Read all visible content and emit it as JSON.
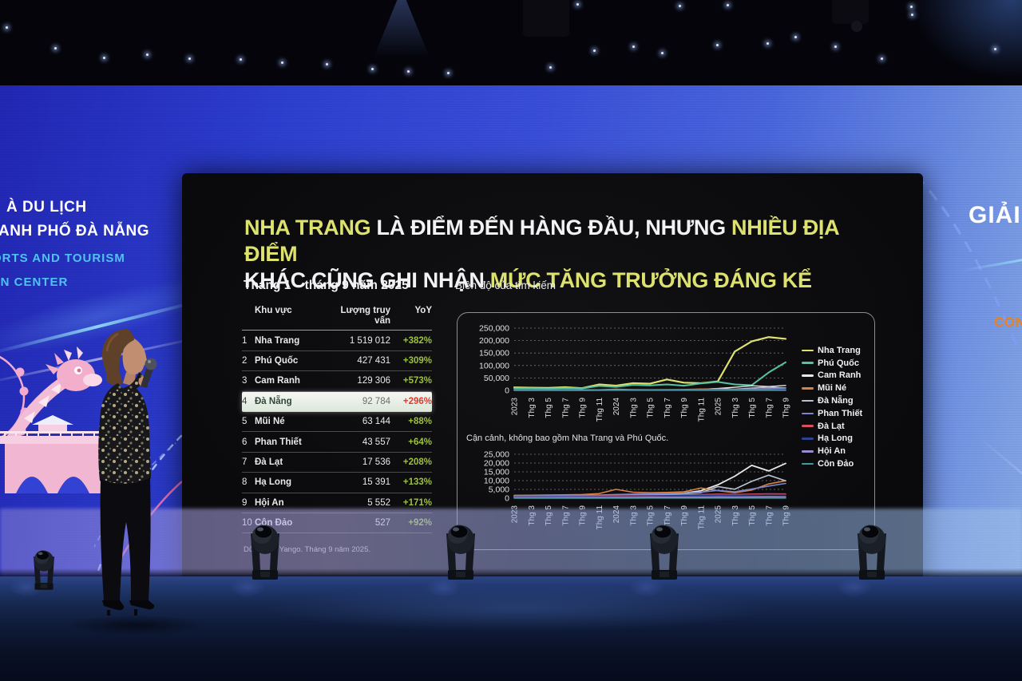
{
  "colors": {
    "accent_yellow": "#dde26e",
    "title_white": "#f2f2f2",
    "positive_green": "#9dc23c",
    "negative_red": "#e0392e",
    "led_cyan": "#4fc3f0",
    "led_orange": "#e8821e"
  },
  "slide": {
    "title_lines": [
      [
        {
          "text": "NHA TRANG ",
          "color": "#dde26e"
        },
        {
          "text": "LÀ ĐIỂM ĐẾN HÀNG ĐẦU, NHƯNG ",
          "color": "#f2f2f2"
        },
        {
          "text": "NHIỀU ĐỊA ĐIỂM",
          "color": "#dde26e"
        }
      ],
      [
        {
          "text": "KHÁC CŨNG GHI NHẬN ",
          "color": "#f2f2f2"
        },
        {
          "text": "MỨC TĂNG TRƯỞNG ĐÁNG KỂ",
          "color": "#dde26e"
        }
      ]
    ],
    "period_label": "Tháng 1 – tháng 9 năm 2025",
    "source_note": "Dữ liệu từ Yango. Tháng 9 năm 2025."
  },
  "table": {
    "headers": {
      "region": "Khu vực",
      "volume": "Lượng truy vấn",
      "yoy": "YoY"
    },
    "rows": [
      {
        "rank": "1",
        "name": "Nha Trang",
        "value": "1 519 012",
        "yoy": "+382%",
        "highlight": false
      },
      {
        "rank": "2",
        "name": "Phú Quốc",
        "value": "427 431",
        "yoy": "+309%",
        "highlight": false
      },
      {
        "rank": "3",
        "name": "Cam Ranh",
        "value": "129 306",
        "yoy": "+573%",
        "highlight": false
      },
      {
        "rank": "4",
        "name": "Đà Nẵng",
        "value": "92 784",
        "yoy": "+296%",
        "highlight": true
      },
      {
        "rank": "5",
        "name": "Mũi Né",
        "value": "63 144",
        "yoy": "+88%",
        "highlight": false
      },
      {
        "rank": "6",
        "name": "Phan Thiết",
        "value": "43 557",
        "yoy": "+64%",
        "highlight": false
      },
      {
        "rank": "7",
        "name": "Đà Lạt",
        "value": "17 536",
        "yoy": "+208%",
        "highlight": false
      },
      {
        "rank": "8",
        "name": "Hạ Long",
        "value": "15 391",
        "yoy": "+133%",
        "highlight": false
      },
      {
        "rank": "9",
        "name": "Hội An",
        "value": "5 552",
        "yoy": "+171%",
        "highlight": false
      },
      {
        "rank": "10",
        "name": "Côn Đảo",
        "value": "527",
        "yoy": "+92%",
        "highlight": false
      }
    ]
  },
  "chart_data": [
    {
      "type": "line",
      "title": "Biên độ của tìm kiếm",
      "xlabel": "",
      "ylabel": "",
      "ylim": [
        0,
        250000
      ],
      "y_ticks": [
        "250,000",
        "200,000",
        "150,000",
        "100,000",
        "50,000",
        "0"
      ],
      "grid": true,
      "legend_position": "right",
      "x_ticks": [
        "2023",
        "Thg 3",
        "Thg 5",
        "Thg 7",
        "Thg 9",
        "Thg 11",
        "2024",
        "Thg 3",
        "Thg 5",
        "Thg 7",
        "Thg 9",
        "Thg 11",
        "2025",
        "Thg 3",
        "Thg 5",
        "Thg 7",
        "Thg 9"
      ],
      "series": [
        {
          "name": "Nha Trang",
          "color": "#dde26e",
          "width": 2.2,
          "values": [
            12000,
            11000,
            10000,
            13000,
            9000,
            24000,
            19000,
            29000,
            27000,
            44000,
            31000,
            29000,
            36000,
            156000,
            197000,
            214000,
            207000
          ]
        },
        {
          "name": "Phú Quốc",
          "color": "#55c2a2",
          "width": 2.0,
          "values": [
            8000,
            8000,
            7000,
            9000,
            8000,
            18000,
            14000,
            22000,
            20000,
            24000,
            19000,
            28000,
            34000,
            24000,
            21000,
            72000,
            113000
          ]
        },
        {
          "name": "Cam Ranh",
          "color": "#e8e8e8",
          "width": 1.4,
          "values": [
            900,
            1000,
            1100,
            1200,
            1300,
            1600,
            1900,
            2100,
            2300,
            2600,
            2900,
            4200,
            7600,
            12500,
            18700,
            15500,
            19800
          ]
        },
        {
          "name": "Mũi Né",
          "color": "#d9823f",
          "width": 1.4,
          "values": [
            1600,
            1700,
            1800,
            1900,
            2100,
            2600,
            5000,
            3400,
            3100,
            3300,
            3600,
            5800,
            4300,
            3100,
            4600,
            8100,
            9900
          ]
        },
        {
          "name": "Đà Nẵng",
          "color": "#b9c2cc",
          "width": 1.4,
          "values": [
            700,
            800,
            900,
            1000,
            1100,
            1300,
            1600,
            1800,
            2000,
            2200,
            2500,
            3100,
            6600,
            5100,
            9600,
            13100,
            9900
          ]
        },
        {
          "name": "Phan Thiết",
          "color": "#7b85cf",
          "width": 1.4,
          "values": [
            1200,
            1300,
            1400,
            1500,
            1600,
            1800,
            2100,
            2300,
            2500,
            2700,
            2900,
            3400,
            4400,
            3600,
            5200,
            6900,
            8400
          ]
        },
        {
          "name": "Đà Lạt",
          "color": "#d94f5c",
          "width": 1.4,
          "values": [
            900,
            950,
            1000,
            1050,
            1100,
            1200,
            1400,
            1500,
            1600,
            1700,
            1800,
            2000,
            2300,
            2100,
            2300,
            2500,
            2400
          ]
        },
        {
          "name": "Hạ Long",
          "color": "#2e4390",
          "width": 1.4,
          "values": [
            700,
            750,
            800,
            850,
            900,
            1000,
            1100,
            1200,
            1300,
            1400,
            1500,
            1600,
            1800,
            1700,
            1900,
            2100,
            2000
          ]
        },
        {
          "name": "Hội An",
          "color": "#9d8bd0",
          "width": 1.4,
          "values": [
            300,
            320,
            340,
            360,
            380,
            420,
            470,
            500,
            530,
            560,
            600,
            650,
            750,
            700,
            800,
            900,
            850
          ]
        },
        {
          "name": "Côn Đảo",
          "color": "#3f9d9d",
          "width": 1.4,
          "values": [
            30,
            32,
            34,
            36,
            38,
            42,
            47,
            50,
            53,
            56,
            60,
            65,
            75,
            70,
            80,
            90,
            85
          ]
        }
      ]
    },
    {
      "type": "line",
      "title": "Cận cảnh, không bao gồm Nha Trang và Phú Quốc.",
      "xlabel": "",
      "ylabel": "",
      "ylim": [
        0,
        25000
      ],
      "y_ticks": [
        "25,000",
        "20,000",
        "15,000",
        "10,000",
        "5,000",
        "0"
      ],
      "grid": true,
      "x_ticks": [
        "2023",
        "Thg 3",
        "Thg 5",
        "Thg 7",
        "Thg 9",
        "Thg 11",
        "2024",
        "Thg 3",
        "Thg 5",
        "Thg 7",
        "Thg 9",
        "Thg 11",
        "2025",
        "Thg 3",
        "Thg 5",
        "Thg 7",
        "Thg 9"
      ],
      "series": [
        {
          "name": "Cam Ranh",
          "color": "#e8e8e8",
          "width": 1.8,
          "values": [
            900,
            1000,
            1100,
            1200,
            1300,
            1600,
            1900,
            2100,
            2300,
            2600,
            2900,
            4200,
            7600,
            12500,
            18700,
            15500,
            19800
          ]
        },
        {
          "name": "Mũi Né",
          "color": "#d9823f",
          "width": 1.6,
          "values": [
            1600,
            1700,
            1800,
            1900,
            2100,
            2600,
            5000,
            3400,
            3100,
            3300,
            3600,
            5800,
            4300,
            3100,
            4600,
            8100,
            9900
          ]
        },
        {
          "name": "Đà Nẵng",
          "color": "#b9c2cc",
          "width": 1.6,
          "values": [
            700,
            800,
            900,
            1000,
            1100,
            1300,
            1600,
            1800,
            2000,
            2200,
            2500,
            3100,
            6600,
            5100,
            9600,
            13100,
            9900
          ]
        },
        {
          "name": "Phan Thiết",
          "color": "#7b85cf",
          "width": 1.6,
          "values": [
            1200,
            1300,
            1400,
            1500,
            1600,
            1800,
            2100,
            2300,
            2500,
            2700,
            2900,
            3400,
            4400,
            3600,
            5200,
            6900,
            8400
          ]
        },
        {
          "name": "Đà Lạt",
          "color": "#d94f5c",
          "width": 1.6,
          "values": [
            900,
            950,
            1000,
            1050,
            1100,
            1200,
            1400,
            1500,
            1600,
            1700,
            1800,
            2000,
            2300,
            2100,
            2300,
            2500,
            2400
          ]
        },
        {
          "name": "Hạ Long",
          "color": "#2e4390",
          "width": 1.6,
          "values": [
            700,
            750,
            800,
            850,
            900,
            1000,
            1100,
            1200,
            1300,
            1400,
            1500,
            1600,
            1800,
            1700,
            1900,
            2100,
            2000
          ]
        },
        {
          "name": "Hội An",
          "color": "#9d8bd0",
          "width": 1.6,
          "values": [
            300,
            320,
            340,
            360,
            380,
            420,
            470,
            500,
            530,
            560,
            600,
            650,
            750,
            700,
            800,
            900,
            850
          ]
        },
        {
          "name": "Côn Đảo",
          "color": "#3f9d9d",
          "width": 1.6,
          "values": [
            30,
            32,
            34,
            36,
            38,
            42,
            47,
            50,
            53,
            56,
            60,
            65,
            75,
            70,
            80,
            90,
            85
          ]
        }
      ]
    }
  ],
  "led_left": {
    "line1": "À DU LỊCH",
    "line2": "ANH PHỐ ĐÀ NẴNG",
    "line3": "ORTS AND TOURISM",
    "line4": "ON CENTER"
  },
  "led_right": {
    "big_word": "GIẢI",
    "partial_word": "CON"
  }
}
